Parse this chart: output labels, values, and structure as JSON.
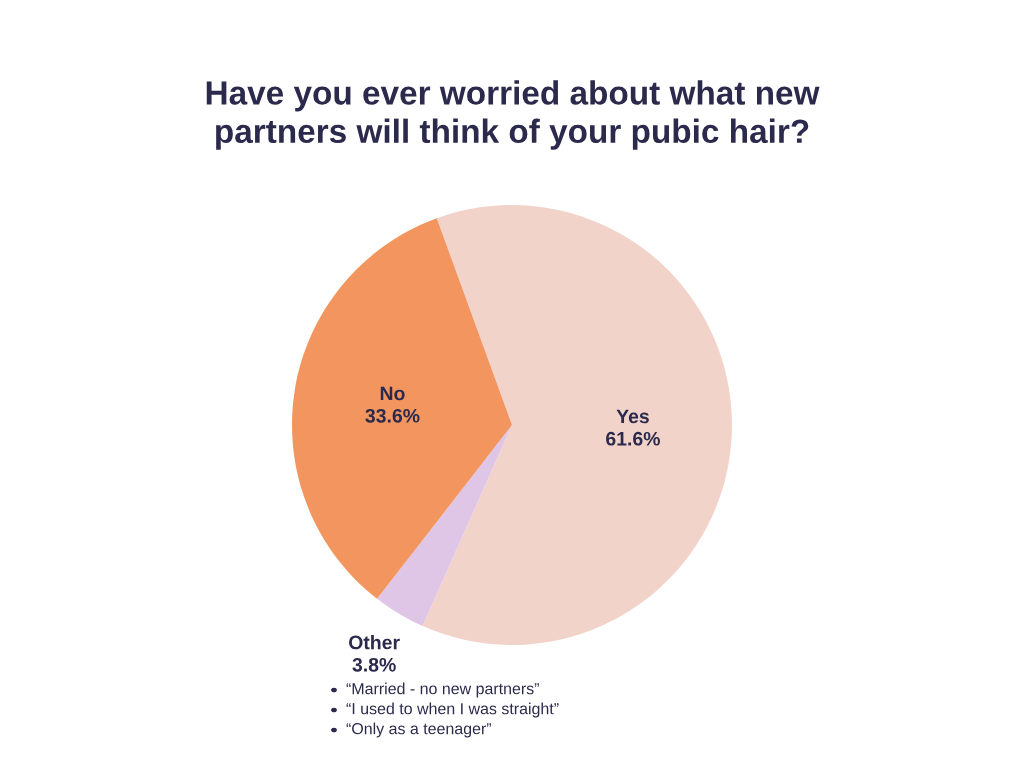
{
  "chart_data": {
    "type": "pie",
    "title": "Have you ever worried about what new\npartners will think of your pubic hair?",
    "categories": [
      "Yes",
      "Other",
      "No"
    ],
    "values": [
      61.6,
      3.8,
      33.6
    ],
    "value_labels": [
      "61.6%",
      "3.8%",
      "33.6%"
    ],
    "colors": [
      "#f2d3ca",
      "#dfc6e6",
      "#f2955f"
    ],
    "annotations": [
      "“Married - no new partners”",
      "“I used to when I was straight”",
      "“Only as a teenager”"
    ]
  }
}
